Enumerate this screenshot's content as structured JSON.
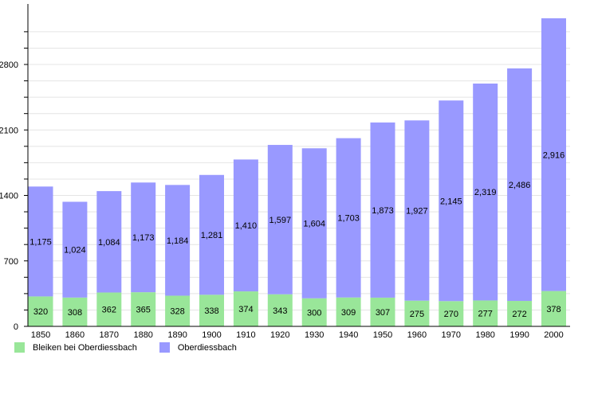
{
  "chart_data": {
    "type": "bar",
    "stacked": true,
    "categories": [
      "1850",
      "1860",
      "1870",
      "1880",
      "1890",
      "1900",
      "1910",
      "1920",
      "1930",
      "1940",
      "1950",
      "1960",
      "1970",
      "1980",
      "1990",
      "2000"
    ],
    "series": [
      {
        "name": "Bleiken bei Oberdiessbach",
        "color": "#99e699",
        "values": [
          320,
          308,
          362,
          365,
          328,
          338,
          374,
          343,
          300,
          309,
          307,
          275,
          270,
          277,
          272,
          378
        ]
      },
      {
        "name": "Oberdiessbach",
        "color": "#9999ff",
        "values": [
          1175,
          1024,
          1084,
          1173,
          1184,
          1281,
          1410,
          1597,
          1604,
          1703,
          1873,
          1927,
          2145,
          2319,
          2486,
          2916
        ]
      }
    ],
    "yticks": [
      "0",
      "700",
      "1400",
      "2100",
      "2800"
    ],
    "ylim": [
      0,
      3300
    ],
    "grid": true,
    "legend": "bottom-left"
  }
}
